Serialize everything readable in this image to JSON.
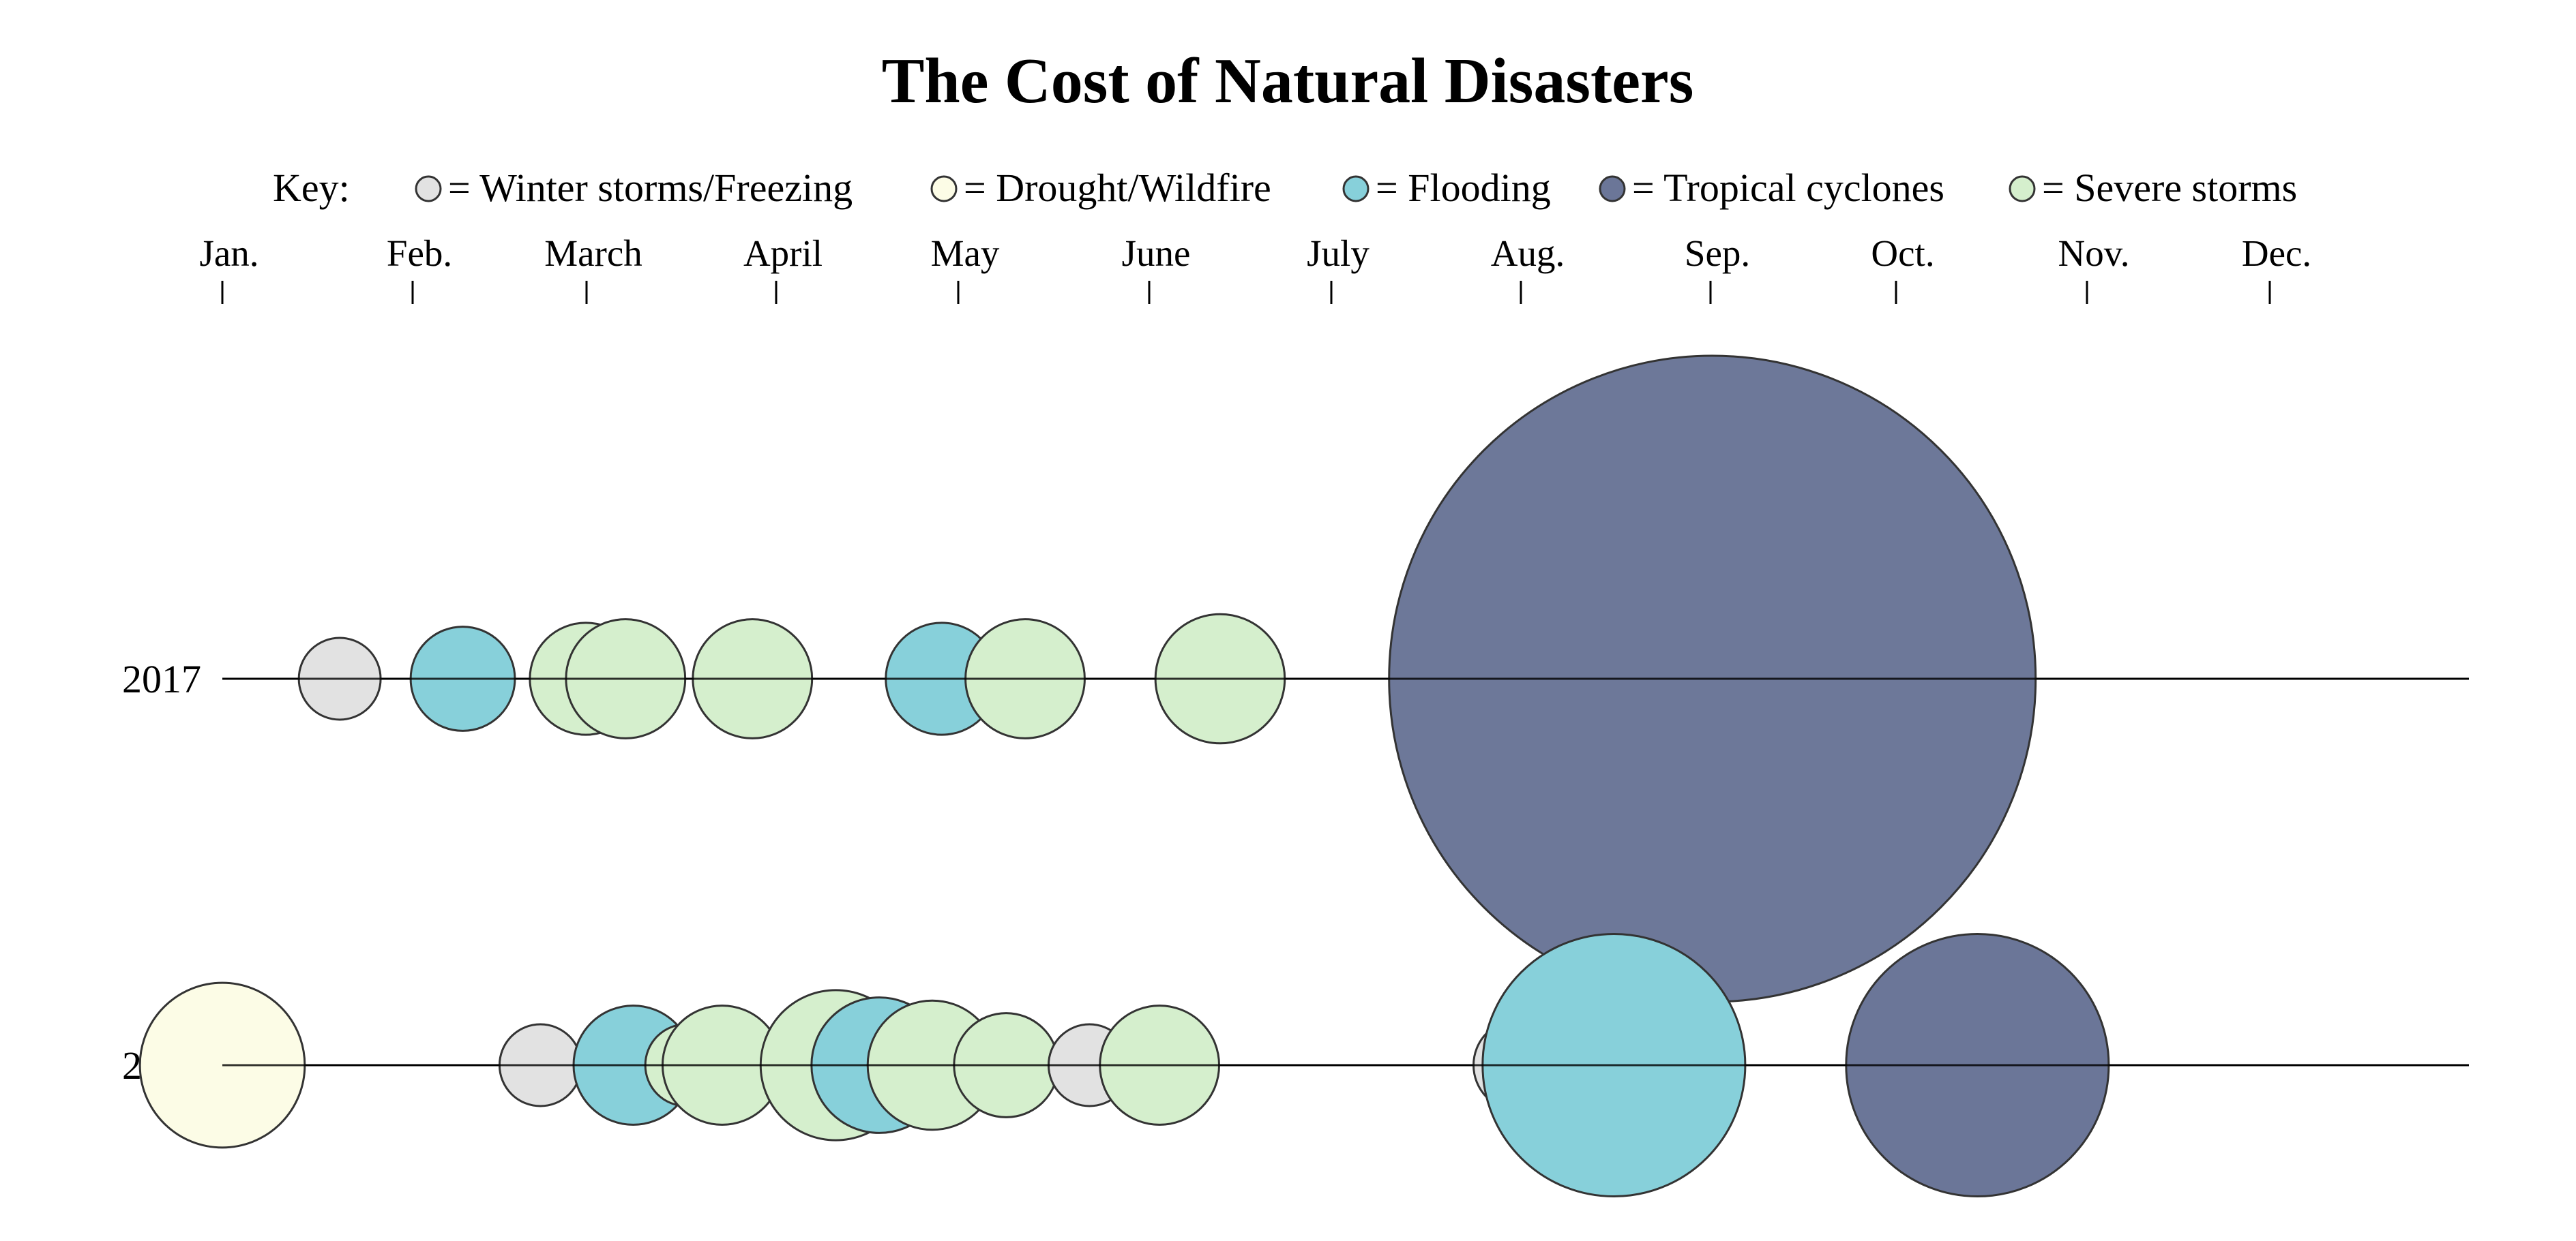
{
  "chart_data": {
    "type": "bubble-timeline",
    "title": "The Cost of Natural Disasters",
    "key": {
      "label": "Key:",
      "entries": [
        {
          "category": "winter",
          "label": "= Winter storms/Freezing",
          "color": "#e2e2e2"
        },
        {
          "category": "drought",
          "label": "= Drought/Wildfire",
          "color": "#fcfce6"
        },
        {
          "category": "flood",
          "label": "= Flooding",
          "color": "#87d0da"
        },
        {
          "category": "cyclone",
          "label": "= Tropical cyclones",
          "color": "#6b7698"
        },
        {
          "category": "severe",
          "label": "= Severe storms",
          "color": "#d5efcd"
        }
      ]
    },
    "months": [
      "Jan.",
      "Feb.",
      "March",
      "April",
      "May",
      "June",
      "July",
      "Aug.",
      "Sep.",
      "Oct.",
      "Nov.",
      "Dec."
    ],
    "years": [
      {
        "year": "2017",
        "events": [
          {
            "month": 1.62,
            "category": "winter",
            "size": 1.6
          },
          {
            "month": 2.27,
            "category": "flood",
            "size": 2.6
          },
          {
            "month": 2.92,
            "category": "severe",
            "size": 3.0
          },
          {
            "month": 3.13,
            "category": "severe",
            "size": 3.4
          },
          {
            "month": 3.8,
            "category": "severe",
            "size": 3.4
          },
          {
            "month": 4.8,
            "category": "flood",
            "size": 3.0
          },
          {
            "month": 5.24,
            "category": "severe",
            "size": 3.4
          },
          {
            "month": 6.27,
            "category": "severe",
            "size": 4.0
          },
          {
            "month": 8.87,
            "category": "cyclone",
            "size": 100
          }
        ]
      },
      {
        "year": "2016",
        "events": [
          {
            "month": 1.0,
            "category": "drought",
            "size": 6.5
          },
          {
            "month": 2.68,
            "category": "winter",
            "size": 1.6
          },
          {
            "month": 3.17,
            "category": "flood",
            "size": 3.4
          },
          {
            "month": 3.45,
            "category": "severe",
            "size": 1.6
          },
          {
            "month": 3.64,
            "category": "severe",
            "size": 3.4
          },
          {
            "month": 4.24,
            "category": "severe",
            "size": 5.4
          },
          {
            "month": 4.47,
            "category": "flood",
            "size": 4.4
          },
          {
            "month": 4.75,
            "category": "severe",
            "size": 4.0
          },
          {
            "month": 5.14,
            "category": "severe",
            "size": 2.6
          },
          {
            "month": 5.58,
            "category": "winter",
            "size": 1.6
          },
          {
            "month": 5.95,
            "category": "severe",
            "size": 3.4
          },
          {
            "month": 7.85,
            "category": "winter",
            "size": 2.0
          },
          {
            "month": 8.35,
            "category": "flood",
            "size": 16.5
          },
          {
            "month": 10.27,
            "category": "cyclone",
            "size": 16.5
          }
        ]
      }
    ],
    "grid": false
  }
}
